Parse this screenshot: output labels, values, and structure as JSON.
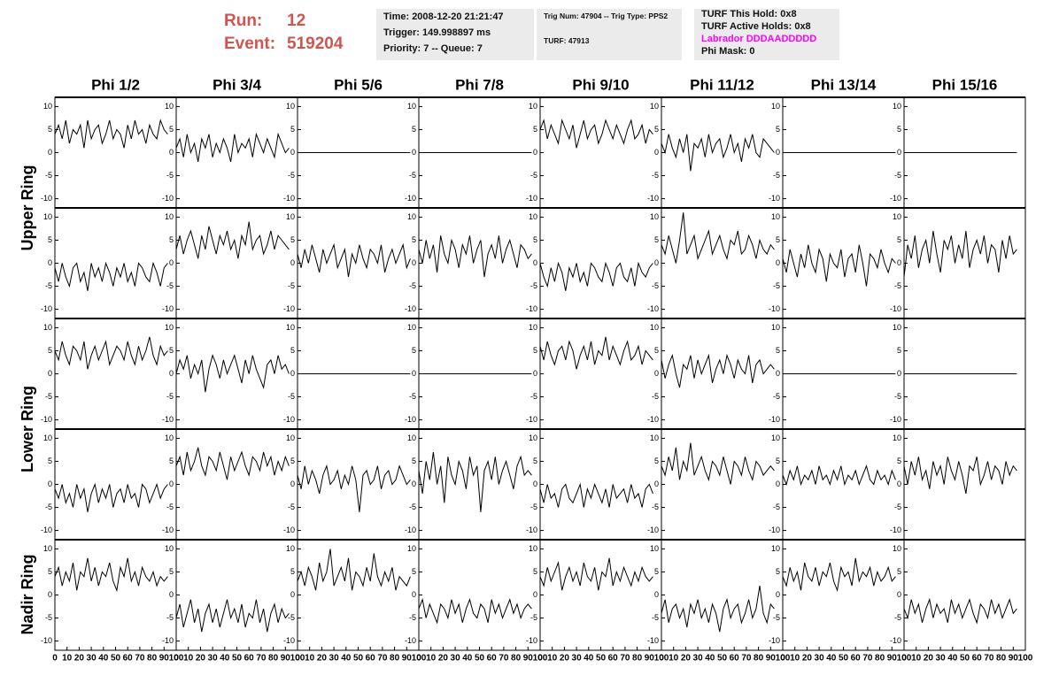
{
  "header": {
    "run_label": "Run:",
    "run": "12",
    "event_label": "Event:",
    "event": "519204",
    "info": [
      "Time: 2008-12-20 21:21:47",
      "Trigger: 149.998897 ms",
      "Priority: 7 -- Queue: 7"
    ],
    "trig": [
      "Trig Num: 47904 -- Trig Type: PPS2",
      "TURF: 47913"
    ],
    "turf": [
      "TURF This Hold: 0x8",
      "TURF Active Holds: 0x8",
      "Labrador DDDAADDDDD",
      "Phi Mask: 0"
    ]
  },
  "chart_data": {
    "type": "line",
    "columns": [
      "Phi 1/2",
      "Phi 3/4",
      "Phi 5/6",
      "Phi 7/8",
      "Phi 9/10",
      "Phi 11/12",
      "Phi 13/14",
      "Phi 15/16"
    ],
    "rings": [
      "Upper Ring",
      "Lower Ring",
      "Nadir Ring"
    ],
    "x": [
      0,
      3,
      6,
      9,
      12,
      15,
      18,
      21,
      24,
      27,
      30,
      33,
      36,
      39,
      42,
      45,
      48,
      51,
      54,
      57,
      60,
      63,
      66,
      69,
      72,
      75,
      78,
      81,
      84,
      87,
      90,
      93
    ],
    "xlim": [
      0,
      100
    ],
    "xticks": [
      0,
      10,
      20,
      30,
      40,
      50,
      60,
      70,
      80,
      90,
      100
    ],
    "ylim": [
      -12,
      12
    ],
    "yticks": [
      -10,
      -5,
      0,
      5,
      10
    ],
    "color": "#000000",
    "panels": [
      [
        [
          4,
          6,
          3,
          7,
          2,
          5,
          4,
          6,
          1,
          7,
          3,
          5,
          6,
          2,
          4,
          7,
          3,
          5,
          4,
          1,
          6,
          3,
          7,
          4,
          5,
          2,
          6,
          4,
          3,
          7,
          5,
          4
        ],
        [
          1,
          3,
          -1,
          4,
          0,
          2,
          -2,
          3,
          1,
          4,
          -1,
          2,
          0,
          3,
          1,
          -2,
          4,
          0,
          2,
          1,
          3,
          -1,
          4,
          2,
          0,
          3,
          1,
          -1,
          4,
          2,
          0,
          1
        ],
        [
          0,
          0,
          0,
          0,
          0,
          0,
          0,
          0,
          0,
          0,
          0,
          0,
          0,
          0,
          0,
          0,
          0,
          0,
          0,
          0,
          0,
          0,
          0,
          0,
          0,
          0,
          0,
          0,
          0,
          0,
          0,
          0
        ],
        [
          0,
          0,
          0,
          0,
          0,
          0,
          0,
          0,
          0,
          0,
          0,
          0,
          0,
          0,
          0,
          0,
          0,
          0,
          0,
          0,
          0,
          0,
          0,
          0,
          0,
          0,
          0,
          0,
          0,
          0,
          0,
          0
        ],
        [
          5,
          7,
          3,
          6,
          4,
          2,
          7,
          5,
          3,
          6,
          1,
          4,
          7,
          3,
          5,
          6,
          2,
          4,
          7,
          5,
          3,
          6,
          4,
          2,
          5,
          7,
          3,
          4,
          6,
          2,
          5,
          4
        ],
        [
          2,
          0,
          4,
          1,
          -1,
          3,
          0,
          4,
          -4,
          2,
          1,
          3,
          -1,
          4,
          0,
          2,
          3,
          -1,
          1,
          4,
          0,
          2,
          -2,
          3,
          1,
          4,
          0,
          -1,
          3,
          2,
          1,
          0
        ],
        [
          0,
          0,
          0,
          0,
          0,
          0,
          0,
          0,
          0,
          0,
          0,
          0,
          0,
          0,
          0,
          0,
          0,
          0,
          0,
          0,
          0,
          0,
          0,
          0,
          0,
          0,
          0,
          0,
          0,
          0,
          0,
          0
        ],
        [
          0,
          0,
          0,
          0,
          0,
          0,
          0,
          0,
          0,
          0,
          0,
          0,
          0,
          0,
          0,
          0,
          0,
          0,
          0,
          0,
          0,
          0,
          0,
          0,
          0,
          0,
          0,
          0,
          0,
          0,
          0,
          0
        ]
      ],
      [
        [
          -1,
          -4,
          0,
          -3,
          -5,
          -1,
          0,
          -4,
          -2,
          -6,
          0,
          -3,
          -1,
          -4,
          0,
          -2,
          -5,
          -1,
          -3,
          0,
          -4,
          -2,
          -5,
          0,
          -1,
          -3,
          -4,
          0,
          -2,
          -5,
          -1,
          0
        ],
        [
          3,
          6,
          2,
          5,
          7,
          4,
          1,
          6,
          3,
          8,
          5,
          2,
          6,
          4,
          7,
          3,
          5,
          1,
          6,
          4,
          9,
          3,
          5,
          6,
          2,
          4,
          7,
          3,
          6,
          5,
          4,
          3
        ],
        [
          2,
          -1,
          3,
          0,
          4,
          1,
          -2,
          3,
          0,
          2,
          4,
          -1,
          1,
          3,
          -3,
          2,
          0,
          4,
          1,
          -1,
          3,
          2,
          0,
          4,
          -2,
          1,
          3,
          0,
          2,
          4,
          -1,
          1
        ],
        [
          3,
          0,
          5,
          1,
          4,
          -2,
          6,
          2,
          0,
          5,
          3,
          -1,
          4,
          2,
          6,
          0,
          3,
          5,
          -3,
          2,
          4,
          1,
          6,
          0,
          3,
          5,
          2,
          -1,
          4,
          3,
          1,
          2
        ],
        [
          0,
          -3,
          -5,
          -1,
          -4,
          0,
          -2,
          -6,
          -1,
          -3,
          0,
          -4,
          -2,
          -5,
          0,
          -1,
          -3,
          -4,
          0,
          -2,
          -5,
          -1,
          0,
          -3,
          -4,
          -1,
          -5,
          0,
          -2,
          -3,
          -1,
          0
        ],
        [
          4,
          2,
          6,
          3,
          0,
          5,
          11,
          2,
          4,
          6,
          1,
          3,
          5,
          7,
          2,
          4,
          6,
          3,
          1,
          5,
          4,
          7,
          2,
          3,
          6,
          4,
          1,
          5,
          3,
          2,
          4,
          3
        ],
        [
          1,
          -2,
          3,
          0,
          -3,
          2,
          -1,
          4,
          0,
          -2,
          3,
          1,
          -4,
          2,
          0,
          -1,
          3,
          -3,
          1,
          2,
          -2,
          4,
          0,
          -5,
          2,
          1,
          -1,
          3,
          0,
          -2,
          1,
          0
        ],
        [
          -3,
          4,
          1,
          6,
          -1,
          3,
          5,
          0,
          7,
          2,
          -2,
          5,
          3,
          6,
          0,
          4,
          1,
          7,
          -1,
          3,
          5,
          2,
          6,
          0,
          4,
          3,
          -2,
          5,
          1,
          6,
          2,
          3
        ]
      ],
      [
        [
          5,
          3,
          7,
          4,
          2,
          6,
          5,
          3,
          7,
          1,
          4,
          6,
          3,
          5,
          7,
          2,
          4,
          6,
          5,
          3,
          7,
          4,
          2,
          6,
          3,
          5,
          8,
          4,
          2,
          6,
          4,
          5
        ],
        [
          0,
          3,
          1,
          4,
          -1,
          2,
          0,
          3,
          -4,
          1,
          4,
          2,
          -1,
          3,
          0,
          2,
          4,
          1,
          -2,
          3,
          0,
          4,
          1,
          -1,
          -3,
          2,
          3,
          0,
          4,
          1,
          2,
          0
        ],
        [
          0,
          0,
          0,
          0,
          0,
          0,
          0,
          0,
          0,
          0,
          0,
          0,
          0,
          0,
          0,
          0,
          0,
          0,
          0,
          0,
          0,
          0,
          0,
          0,
          0,
          0,
          0,
          0,
          0,
          0,
          0,
          0
        ],
        [
          0,
          0,
          0,
          0,
          0,
          0,
          0,
          0,
          0,
          0,
          0,
          0,
          0,
          0,
          0,
          0,
          0,
          0,
          0,
          0,
          0,
          0,
          0,
          0,
          0,
          0,
          0,
          0,
          0,
          0,
          0,
          0
        ],
        [
          6,
          3,
          7,
          4,
          2,
          5,
          6,
          3,
          7,
          5,
          1,
          4,
          6,
          3,
          7,
          2,
          5,
          4,
          8,
          3,
          6,
          4,
          2,
          5,
          7,
          3,
          4,
          6,
          2,
          5,
          4,
          3
        ],
        [
          3,
          -1,
          2,
          4,
          0,
          -3,
          2,
          1,
          4,
          -1,
          3,
          0,
          2,
          4,
          -2,
          1,
          3,
          0,
          4,
          2,
          -1,
          3,
          1,
          0,
          4,
          -2,
          2,
          3,
          0,
          1,
          2,
          1
        ],
        [
          0,
          0,
          0,
          0,
          0,
          0,
          0,
          0,
          0,
          0,
          0,
          0,
          0,
          0,
          0,
          0,
          0,
          0,
          0,
          0,
          0,
          0,
          0,
          0,
          0,
          0,
          0,
          0,
          0,
          0,
          0,
          0
        ],
        [
          0,
          0,
          0,
          0,
          0,
          0,
          0,
          0,
          0,
          0,
          0,
          0,
          0,
          0,
          0,
          0,
          0,
          0,
          0,
          0,
          0,
          0,
          0,
          0,
          0,
          0,
          0,
          0,
          0,
          0,
          0,
          0
        ]
      ],
      [
        [
          -1,
          -3,
          0,
          -4,
          -2,
          -5,
          0,
          -3,
          -1,
          -6,
          -2,
          0,
          -4,
          -1,
          -3,
          0,
          -5,
          -2,
          -1,
          -4,
          0,
          -3,
          -2,
          -5,
          0,
          -1,
          -4,
          -2,
          0,
          -3,
          -1,
          0
        ],
        [
          4,
          6,
          2,
          7,
          3,
          5,
          8,
          4,
          2,
          6,
          5,
          3,
          7,
          4,
          1,
          6,
          3,
          5,
          7,
          4,
          2,
          6,
          5,
          3,
          7,
          4,
          6,
          2,
          5,
          3,
          6,
          4
        ],
        [
          2,
          -1,
          4,
          0,
          3,
          1,
          -2,
          2,
          4,
          0,
          1,
          3,
          -1,
          2,
          0,
          4,
          1,
          -6,
          2,
          3,
          0,
          1,
          4,
          -1,
          2,
          3,
          0,
          1,
          4,
          2,
          0,
          1
        ],
        [
          3,
          -2,
          5,
          1,
          7,
          0,
          4,
          -4,
          6,
          2,
          0,
          5,
          3,
          -1,
          6,
          2,
          4,
          -6,
          3,
          5,
          1,
          6,
          0,
          3,
          5,
          2,
          -1,
          4,
          6,
          2,
          3,
          2
        ],
        [
          -1,
          -4,
          0,
          -3,
          -2,
          -5,
          -1,
          0,
          -3,
          -4,
          -2,
          0,
          -5,
          -1,
          -3,
          0,
          -2,
          -4,
          -1,
          -5,
          0,
          -3,
          -2,
          -1,
          -4,
          0,
          -3,
          -2,
          -5,
          -1,
          0,
          -2
        ],
        [
          4,
          2,
          6,
          3,
          8,
          1,
          5,
          3,
          9,
          2,
          4,
          6,
          3,
          1,
          5,
          4,
          2,
          6,
          3,
          0,
          5,
          4,
          2,
          6,
          3,
          1,
          5,
          4,
          2,
          3,
          4,
          3
        ],
        [
          2,
          0,
          3,
          1,
          4,
          0,
          2,
          1,
          3,
          0,
          4,
          1,
          2,
          0,
          3,
          1,
          4,
          0,
          2,
          1,
          3,
          0,
          2,
          4,
          1,
          0,
          3,
          1,
          2,
          0,
          3,
          1
        ],
        [
          4,
          0,
          5,
          2,
          6,
          1,
          3,
          -1,
          5,
          2,
          4,
          0,
          6,
          3,
          1,
          5,
          2,
          -2,
          4,
          3,
          6,
          0,
          2,
          5,
          1,
          4,
          3,
          0,
          5,
          2,
          4,
          3
        ]
      ],
      [
        [
          4,
          6,
          2,
          5,
          3,
          7,
          1,
          5,
          4,
          8,
          3,
          6,
          2,
          5,
          4,
          7,
          3,
          1,
          6,
          4,
          8,
          3,
          5,
          2,
          6,
          4,
          3,
          5,
          2,
          4,
          3,
          4
        ],
        [
          -5,
          -2,
          -7,
          -4,
          -1,
          -6,
          -3,
          -8,
          -4,
          -2,
          -6,
          -3,
          -7,
          -4,
          -1,
          -5,
          -3,
          -6,
          -2,
          -7,
          -4,
          -5,
          -1,
          -6,
          -3,
          -8,
          -4,
          -2,
          -6,
          -3,
          -5,
          -4
        ],
        [
          3,
          5,
          2,
          6,
          4,
          1,
          7,
          3,
          5,
          10,
          2,
          4,
          6,
          3,
          8,
          1,
          5,
          4,
          2,
          6,
          3,
          9,
          4,
          2,
          5,
          3,
          6,
          1,
          4,
          3,
          2,
          4
        ],
        [
          -3,
          -1,
          -5,
          -2,
          -4,
          -6,
          -2,
          -3,
          -5,
          -1,
          -4,
          -2,
          -6,
          -3,
          -1,
          -4,
          -5,
          -2,
          -3,
          -6,
          -1,
          -4,
          -2,
          -5,
          -3,
          -1,
          -4,
          -2,
          -5,
          -3,
          -2,
          -3
        ],
        [
          4,
          2,
          6,
          3,
          5,
          7,
          1,
          4,
          6,
          3,
          5,
          2,
          7,
          4,
          3,
          6,
          1,
          5,
          4,
          8,
          2,
          5,
          3,
          6,
          4,
          2,
          5,
          3,
          6,
          4,
          3,
          4
        ],
        [
          -4,
          -1,
          -6,
          -3,
          -2,
          -5,
          -3,
          -7,
          -2,
          -4,
          -1,
          -5,
          -3,
          -6,
          -2,
          -4,
          -8,
          -3,
          -1,
          -5,
          -3,
          -2,
          -6,
          -4,
          -1,
          -5,
          -3,
          2,
          -4,
          -6,
          -2,
          -3
        ],
        [
          4,
          2,
          6,
          3,
          5,
          1,
          7,
          4,
          3,
          6,
          2,
          5,
          4,
          7,
          3,
          1,
          6,
          4,
          5,
          2,
          8,
          3,
          5,
          4,
          6,
          2,
          5,
          3,
          4,
          6,
          3,
          4
        ],
        [
          -3,
          -5,
          -1,
          -4,
          -2,
          -6,
          -3,
          -1,
          -5,
          -2,
          -4,
          -3,
          -6,
          -1,
          -4,
          -2,
          -5,
          -3,
          -1,
          -4,
          -6,
          -2,
          -3,
          -5,
          -1,
          -4,
          -2,
          -5,
          -3,
          -1,
          -4,
          -3
        ]
      ]
    ]
  }
}
